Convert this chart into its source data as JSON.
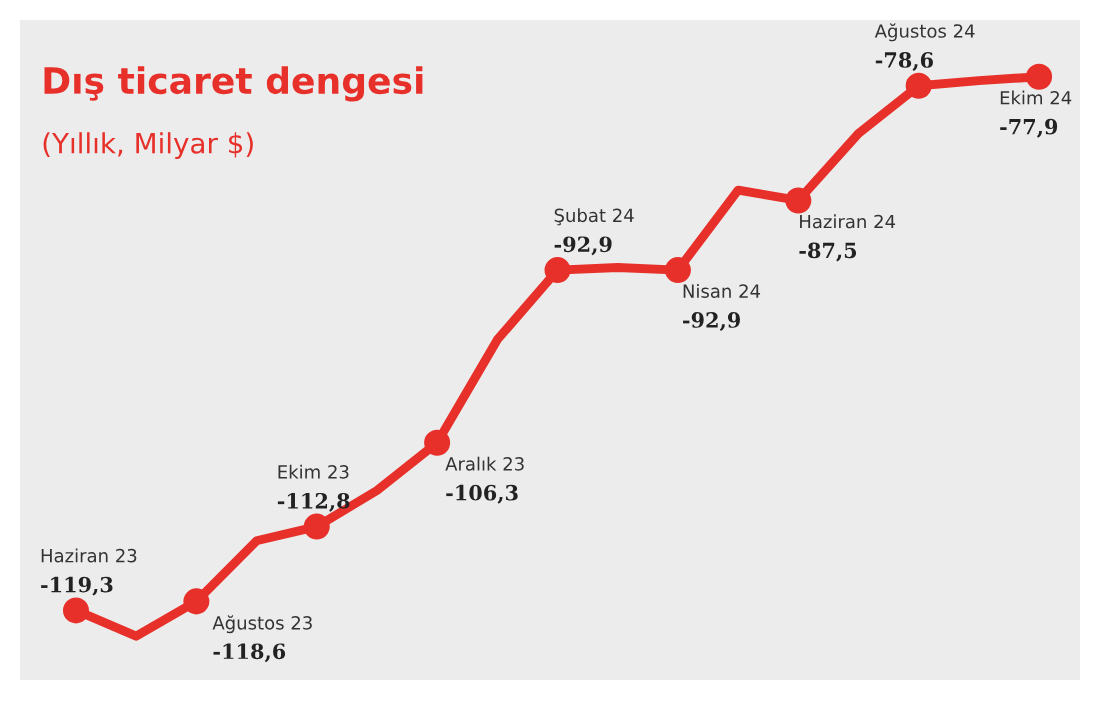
{
  "chart_data": {
    "type": "line",
    "title": "Dış ticaret dengesi",
    "subtitle": "(Yıllık, Milyar $)",
    "categories": [
      null,
      null,
      null,
      null,
      null,
      null,
      null,
      null,
      null,
      null,
      null,
      null,
      null,
      null,
      null,
      null,
      null
    ],
    "series": [
      {
        "color": "#e8302a",
        "values": [
          -119.3,
          -121.3,
          -118.6,
          -113.9,
          -112.8,
          -110.0,
          -106.3,
          -98.3,
          -92.9,
          -92.7,
          -92.9,
          -86.7,
          -87.5,
          -82.3,
          -78.6,
          -78.2,
          -77.9
        ],
        "value_labels": [
          "-119,3",
          null,
          "-118,6",
          null,
          "-112,8",
          null,
          "-106,3",
          null,
          "-92,9",
          null,
          "-92,9",
          null,
          "-87,5",
          null,
          "-78,6",
          null,
          "-77,9"
        ]
      }
    ],
    "annotations": [
      "Haziran 23",
      "Ağustos 23",
      "Ekim 23",
      "Aralık 23",
      "Şubat 24",
      "Nisan 24",
      "Haziran 24",
      "Ağustos 24",
      "Ekim 24"
    ],
    "marker": "circle",
    "legend": false
  }
}
